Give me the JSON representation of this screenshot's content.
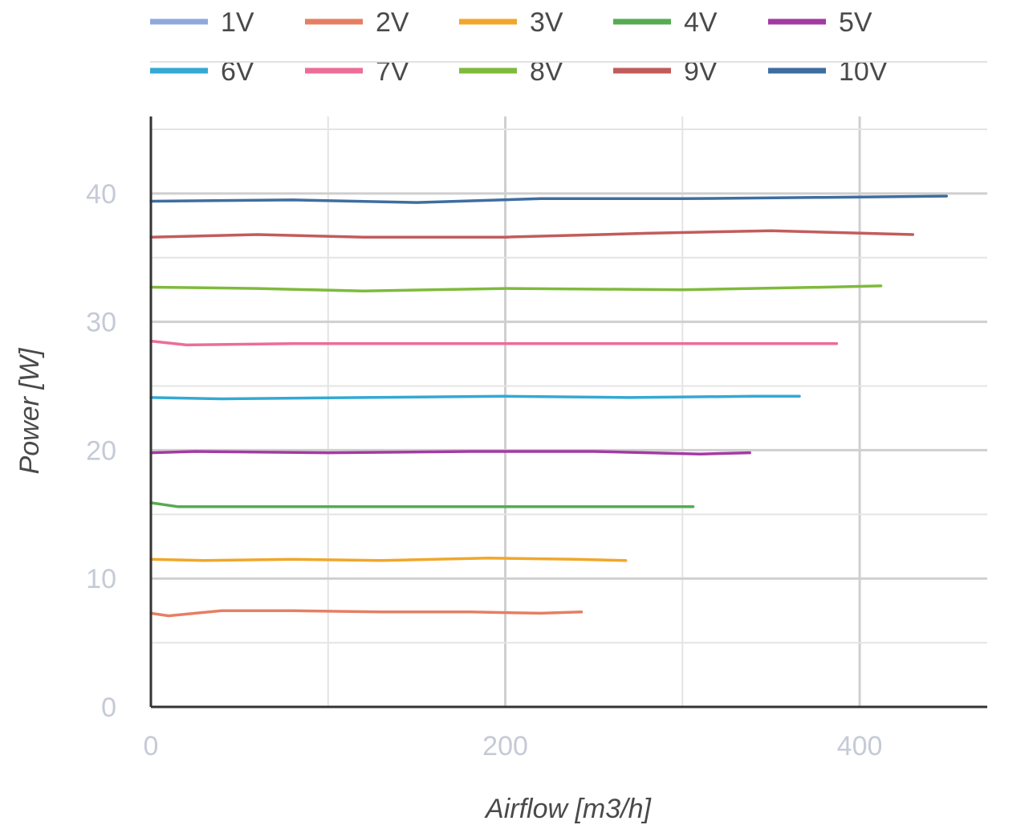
{
  "chart_data": {
    "type": "line",
    "xlabel": "Airflow [m3/h]",
    "ylabel": "Power [W]",
    "xlim": [
      0,
      472
    ],
    "ylim": [
      0,
      46
    ],
    "x_ticks": [
      0,
      200,
      400
    ],
    "y_ticks": [
      0,
      10,
      20,
      30,
      40
    ],
    "grid": true,
    "legend_position": "top",
    "series": [
      {
        "name": "1V",
        "color": "#8fa8dc",
        "x": [],
        "y": []
      },
      {
        "name": "2V",
        "color": "#e57f63",
        "x": [
          0,
          10,
          40,
          80,
          130,
          180,
          220,
          243
        ],
        "y": [
          7.3,
          7.1,
          7.5,
          7.5,
          7.4,
          7.4,
          7.3,
          7.4
        ]
      },
      {
        "name": "3V",
        "color": "#f0a72a",
        "x": [
          0,
          30,
          80,
          130,
          190,
          240,
          268
        ],
        "y": [
          11.5,
          11.4,
          11.5,
          11.4,
          11.6,
          11.5,
          11.4
        ]
      },
      {
        "name": "4V",
        "color": "#56ab52",
        "x": [
          0,
          15,
          60,
          130,
          200,
          270,
          306
        ],
        "y": [
          15.9,
          15.6,
          15.6,
          15.6,
          15.6,
          15.6,
          15.6
        ]
      },
      {
        "name": "5V",
        "color": "#a33aa3",
        "x": [
          0,
          25,
          100,
          180,
          250,
          310,
          338
        ],
        "y": [
          19.8,
          19.9,
          19.8,
          19.9,
          19.9,
          19.7,
          19.8
        ]
      },
      {
        "name": "6V",
        "color": "#34a9d4",
        "x": [
          0,
          40,
          120,
          200,
          270,
          340,
          366
        ],
        "y": [
          24.1,
          24.0,
          24.1,
          24.2,
          24.1,
          24.2,
          24.2
        ]
      },
      {
        "name": "7V",
        "color": "#ec6d98",
        "x": [
          0,
          20,
          80,
          180,
          280,
          360,
          387
        ],
        "y": [
          28.5,
          28.2,
          28.3,
          28.3,
          28.3,
          28.3,
          28.3
        ]
      },
      {
        "name": "8V",
        "color": "#7fba3c",
        "x": [
          0,
          60,
          120,
          200,
          300,
          380,
          412
        ],
        "y": [
          32.7,
          32.6,
          32.4,
          32.6,
          32.5,
          32.7,
          32.8
        ]
      },
      {
        "name": "9V",
        "color": "#c25c5c",
        "x": [
          0,
          60,
          120,
          200,
          280,
          350,
          430
        ],
        "y": [
          36.6,
          36.8,
          36.6,
          36.6,
          36.9,
          37.1,
          36.8
        ]
      },
      {
        "name": "10V",
        "color": "#3e6ea0",
        "x": [
          0,
          80,
          150,
          220,
          300,
          380,
          449
        ],
        "y": [
          39.4,
          39.5,
          39.3,
          39.6,
          39.6,
          39.7,
          39.8
        ]
      }
    ]
  }
}
